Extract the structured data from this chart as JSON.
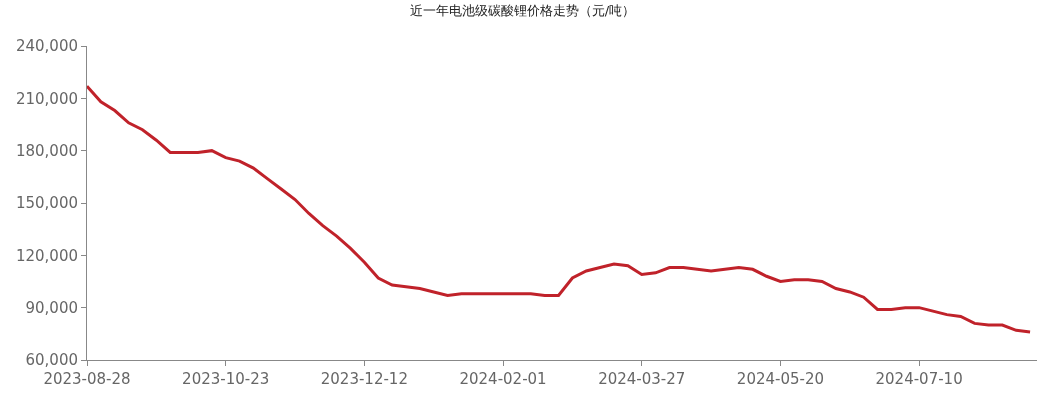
{
  "chart_data": {
    "type": "line",
    "title": "近一年电池级碳酸锂价格走势（元/吨）",
    "categories": [
      "2023-08-28",
      null,
      null,
      null,
      null,
      null,
      null,
      null,
      null,
      null,
      "2023-10-23",
      null,
      null,
      null,
      null,
      null,
      null,
      null,
      null,
      null,
      "2023-12-12",
      null,
      null,
      null,
      null,
      null,
      null,
      null,
      null,
      null,
      "2024-02-01",
      null,
      null,
      null,
      null,
      null,
      null,
      null,
      null,
      null,
      "2024-03-27",
      null,
      null,
      null,
      null,
      null,
      null,
      null,
      null,
      null,
      "2024-05-20",
      null,
      null,
      null,
      null,
      null,
      null,
      null,
      null,
      null,
      "2024-07-10",
      null,
      null,
      null,
      null,
      null,
      null,
      null,
      null
    ],
    "series": [
      {
        "color": "#c0222a",
        "values": [
          217000,
          208000,
          203000,
          196000,
          192000,
          186000,
          179000,
          179000,
          179000,
          180000,
          176000,
          174000,
          170000,
          164000,
          158000,
          152000,
          144000,
          137000,
          131000,
          124000,
          116000,
          107000,
          103000,
          102000,
          101000,
          99000,
          97000,
          98000,
          98000,
          98000,
          98000,
          98000,
          98000,
          97000,
          97000,
          107000,
          111000,
          113000,
          115000,
          114000,
          109000,
          110000,
          113000,
          113000,
          112000,
          111000,
          112000,
          113000,
          112000,
          108000,
          105000,
          106000,
          106000,
          105000,
          101000,
          99000,
          96000,
          89000,
          89000,
          90000,
          90000,
          88000,
          86000,
          85000,
          81000,
          80000,
          80000,
          77000,
          76000
        ]
      }
    ],
    "ylim": [
      60000,
      240000
    ],
    "yticks": [
      {
        "value": 60000,
        "label": "60,000"
      },
      {
        "value": 90000,
        "label": "90,000"
      },
      {
        "value": 120000,
        "label": "120,000"
      },
      {
        "value": 150000,
        "label": "150,000"
      },
      {
        "value": 180000,
        "label": "180,000"
      },
      {
        "value": 210000,
        "label": "210,000"
      },
      {
        "value": 240000,
        "label": "240,000"
      }
    ],
    "legend": false,
    "marker": "none",
    "line_style": "solid"
  }
}
